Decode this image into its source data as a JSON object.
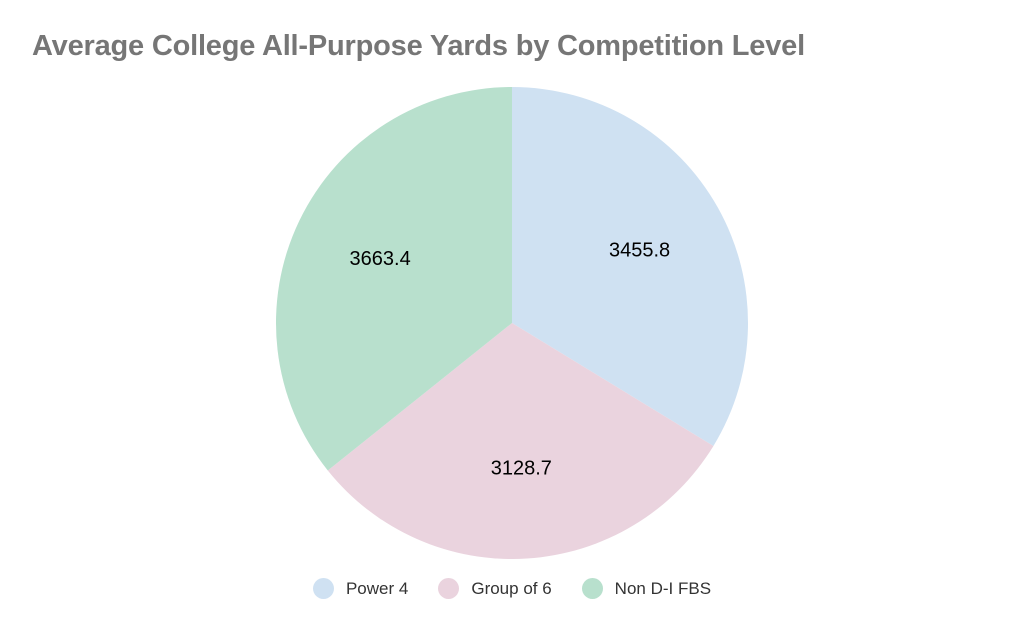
{
  "chart_data": {
    "type": "pie",
    "title": "Average College All-Purpose Yards by Competition Level",
    "legend_position": "bottom",
    "slices": [
      {
        "label": "Power 4",
        "value": 3455.8,
        "value_label": "3455.8",
        "color": "#cfe1f2"
      },
      {
        "label": "Group of 6",
        "value": 3128.7,
        "value_label": "3128.7",
        "color": "#ead3de"
      },
      {
        "label": "Non D-I FBS",
        "value": 3663.4,
        "value_label": "3663.4",
        "color": "#b8e0cd"
      }
    ]
  }
}
